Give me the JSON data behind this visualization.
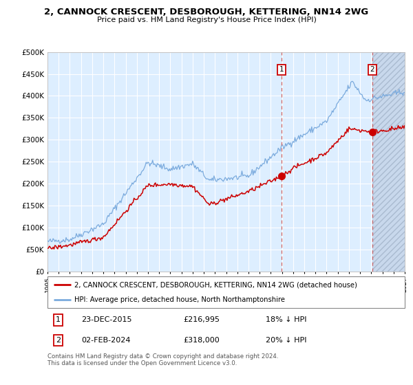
{
  "title": "2, CANNOCK CRESCENT, DESBOROUGH, KETTERING, NN14 2WG",
  "subtitle": "Price paid vs. HM Land Registry's House Price Index (HPI)",
  "hpi_label": "HPI: Average price, detached house, North Northamptonshire",
  "property_label": "2, CANNOCK CRESCENT, DESBOROUGH, KETTERING, NN14 2WG (detached house)",
  "annotation1": {
    "label": "1",
    "date": "23-DEC-2015",
    "price": 216995,
    "note": "18% ↓ HPI"
  },
  "annotation2": {
    "label": "2",
    "date": "02-FEB-2024",
    "price": 318000,
    "note": "20% ↓ HPI"
  },
  "copyright": "Contains HM Land Registry data © Crown copyright and database right 2024.\nThis data is licensed under the Open Government Licence v3.0.",
  "hpi_color": "#7aaadd",
  "property_color": "#cc0000",
  "dashed_line_color": "#cc6666",
  "bg_chart_color": "#ddeeff",
  "hatch_bg_color": "#c8d8ec",
  "hatch_edge_color": "#aabbd0",
  "ylim": [
    0,
    500000
  ],
  "yticks": [
    0,
    50000,
    100000,
    150000,
    200000,
    250000,
    300000,
    350000,
    400000,
    450000,
    500000
  ],
  "start_year": 1995,
  "end_year": 2027,
  "marker1_year": 2015.97,
  "marker2_year": 2024.09
}
